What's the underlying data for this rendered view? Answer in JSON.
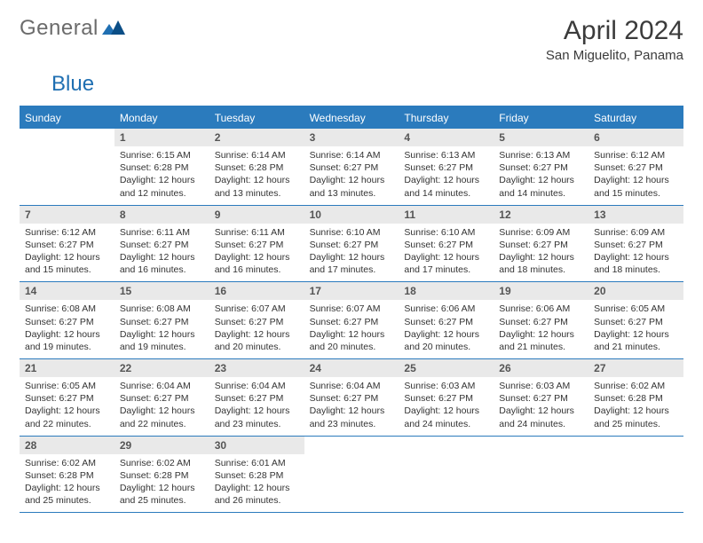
{
  "logo": {
    "word1": "General",
    "word2": "Blue"
  },
  "title": "April 2024",
  "location": "San Miguelito, Panama",
  "colors": {
    "header_bg": "#2b7bbd",
    "header_text": "#ffffff",
    "daynum_bg": "#e9e9e9",
    "border": "#2b7bbd",
    "body_text": "#333333",
    "logo_gray": "#6b6b6b",
    "logo_blue": "#1f6fb2",
    "background": "#ffffff"
  },
  "layout": {
    "columns": 7,
    "rows_of_weeks": 5,
    "dayhead_fontsize_pt": 9,
    "daynum_fontsize_pt": 9,
    "info_fontsize_pt": 8,
    "title_fontsize_pt": 22,
    "location_fontsize_pt": 11
  },
  "weekdays": [
    "Sunday",
    "Monday",
    "Tuesday",
    "Wednesday",
    "Thursday",
    "Friday",
    "Saturday"
  ],
  "days": [
    {
      "n": "",
      "sr": "",
      "ss": "",
      "dl": ""
    },
    {
      "n": "1",
      "sr": "Sunrise: 6:15 AM",
      "ss": "Sunset: 6:28 PM",
      "dl": "Daylight: 12 hours and 12 minutes."
    },
    {
      "n": "2",
      "sr": "Sunrise: 6:14 AM",
      "ss": "Sunset: 6:28 PM",
      "dl": "Daylight: 12 hours and 13 minutes."
    },
    {
      "n": "3",
      "sr": "Sunrise: 6:14 AM",
      "ss": "Sunset: 6:27 PM",
      "dl": "Daylight: 12 hours and 13 minutes."
    },
    {
      "n": "4",
      "sr": "Sunrise: 6:13 AM",
      "ss": "Sunset: 6:27 PM",
      "dl": "Daylight: 12 hours and 14 minutes."
    },
    {
      "n": "5",
      "sr": "Sunrise: 6:13 AM",
      "ss": "Sunset: 6:27 PM",
      "dl": "Daylight: 12 hours and 14 minutes."
    },
    {
      "n": "6",
      "sr": "Sunrise: 6:12 AM",
      "ss": "Sunset: 6:27 PM",
      "dl": "Daylight: 12 hours and 15 minutes."
    },
    {
      "n": "7",
      "sr": "Sunrise: 6:12 AM",
      "ss": "Sunset: 6:27 PM",
      "dl": "Daylight: 12 hours and 15 minutes."
    },
    {
      "n": "8",
      "sr": "Sunrise: 6:11 AM",
      "ss": "Sunset: 6:27 PM",
      "dl": "Daylight: 12 hours and 16 minutes."
    },
    {
      "n": "9",
      "sr": "Sunrise: 6:11 AM",
      "ss": "Sunset: 6:27 PM",
      "dl": "Daylight: 12 hours and 16 minutes."
    },
    {
      "n": "10",
      "sr": "Sunrise: 6:10 AM",
      "ss": "Sunset: 6:27 PM",
      "dl": "Daylight: 12 hours and 17 minutes."
    },
    {
      "n": "11",
      "sr": "Sunrise: 6:10 AM",
      "ss": "Sunset: 6:27 PM",
      "dl": "Daylight: 12 hours and 17 minutes."
    },
    {
      "n": "12",
      "sr": "Sunrise: 6:09 AM",
      "ss": "Sunset: 6:27 PM",
      "dl": "Daylight: 12 hours and 18 minutes."
    },
    {
      "n": "13",
      "sr": "Sunrise: 6:09 AM",
      "ss": "Sunset: 6:27 PM",
      "dl": "Daylight: 12 hours and 18 minutes."
    },
    {
      "n": "14",
      "sr": "Sunrise: 6:08 AM",
      "ss": "Sunset: 6:27 PM",
      "dl": "Daylight: 12 hours and 19 minutes."
    },
    {
      "n": "15",
      "sr": "Sunrise: 6:08 AM",
      "ss": "Sunset: 6:27 PM",
      "dl": "Daylight: 12 hours and 19 minutes."
    },
    {
      "n": "16",
      "sr": "Sunrise: 6:07 AM",
      "ss": "Sunset: 6:27 PM",
      "dl": "Daylight: 12 hours and 20 minutes."
    },
    {
      "n": "17",
      "sr": "Sunrise: 6:07 AM",
      "ss": "Sunset: 6:27 PM",
      "dl": "Daylight: 12 hours and 20 minutes."
    },
    {
      "n": "18",
      "sr": "Sunrise: 6:06 AM",
      "ss": "Sunset: 6:27 PM",
      "dl": "Daylight: 12 hours and 20 minutes."
    },
    {
      "n": "19",
      "sr": "Sunrise: 6:06 AM",
      "ss": "Sunset: 6:27 PM",
      "dl": "Daylight: 12 hours and 21 minutes."
    },
    {
      "n": "20",
      "sr": "Sunrise: 6:05 AM",
      "ss": "Sunset: 6:27 PM",
      "dl": "Daylight: 12 hours and 21 minutes."
    },
    {
      "n": "21",
      "sr": "Sunrise: 6:05 AM",
      "ss": "Sunset: 6:27 PM",
      "dl": "Daylight: 12 hours and 22 minutes."
    },
    {
      "n": "22",
      "sr": "Sunrise: 6:04 AM",
      "ss": "Sunset: 6:27 PM",
      "dl": "Daylight: 12 hours and 22 minutes."
    },
    {
      "n": "23",
      "sr": "Sunrise: 6:04 AM",
      "ss": "Sunset: 6:27 PM",
      "dl": "Daylight: 12 hours and 23 minutes."
    },
    {
      "n": "24",
      "sr": "Sunrise: 6:04 AM",
      "ss": "Sunset: 6:27 PM",
      "dl": "Daylight: 12 hours and 23 minutes."
    },
    {
      "n": "25",
      "sr": "Sunrise: 6:03 AM",
      "ss": "Sunset: 6:27 PM",
      "dl": "Daylight: 12 hours and 24 minutes."
    },
    {
      "n": "26",
      "sr": "Sunrise: 6:03 AM",
      "ss": "Sunset: 6:27 PM",
      "dl": "Daylight: 12 hours and 24 minutes."
    },
    {
      "n": "27",
      "sr": "Sunrise: 6:02 AM",
      "ss": "Sunset: 6:28 PM",
      "dl": "Daylight: 12 hours and 25 minutes."
    },
    {
      "n": "28",
      "sr": "Sunrise: 6:02 AM",
      "ss": "Sunset: 6:28 PM",
      "dl": "Daylight: 12 hours and 25 minutes."
    },
    {
      "n": "29",
      "sr": "Sunrise: 6:02 AM",
      "ss": "Sunset: 6:28 PM",
      "dl": "Daylight: 12 hours and 25 minutes."
    },
    {
      "n": "30",
      "sr": "Sunrise: 6:01 AM",
      "ss": "Sunset: 6:28 PM",
      "dl": "Daylight: 12 hours and 26 minutes."
    },
    {
      "n": "",
      "sr": "",
      "ss": "",
      "dl": ""
    },
    {
      "n": "",
      "sr": "",
      "ss": "",
      "dl": ""
    },
    {
      "n": "",
      "sr": "",
      "ss": "",
      "dl": ""
    },
    {
      "n": "",
      "sr": "",
      "ss": "",
      "dl": ""
    }
  ]
}
